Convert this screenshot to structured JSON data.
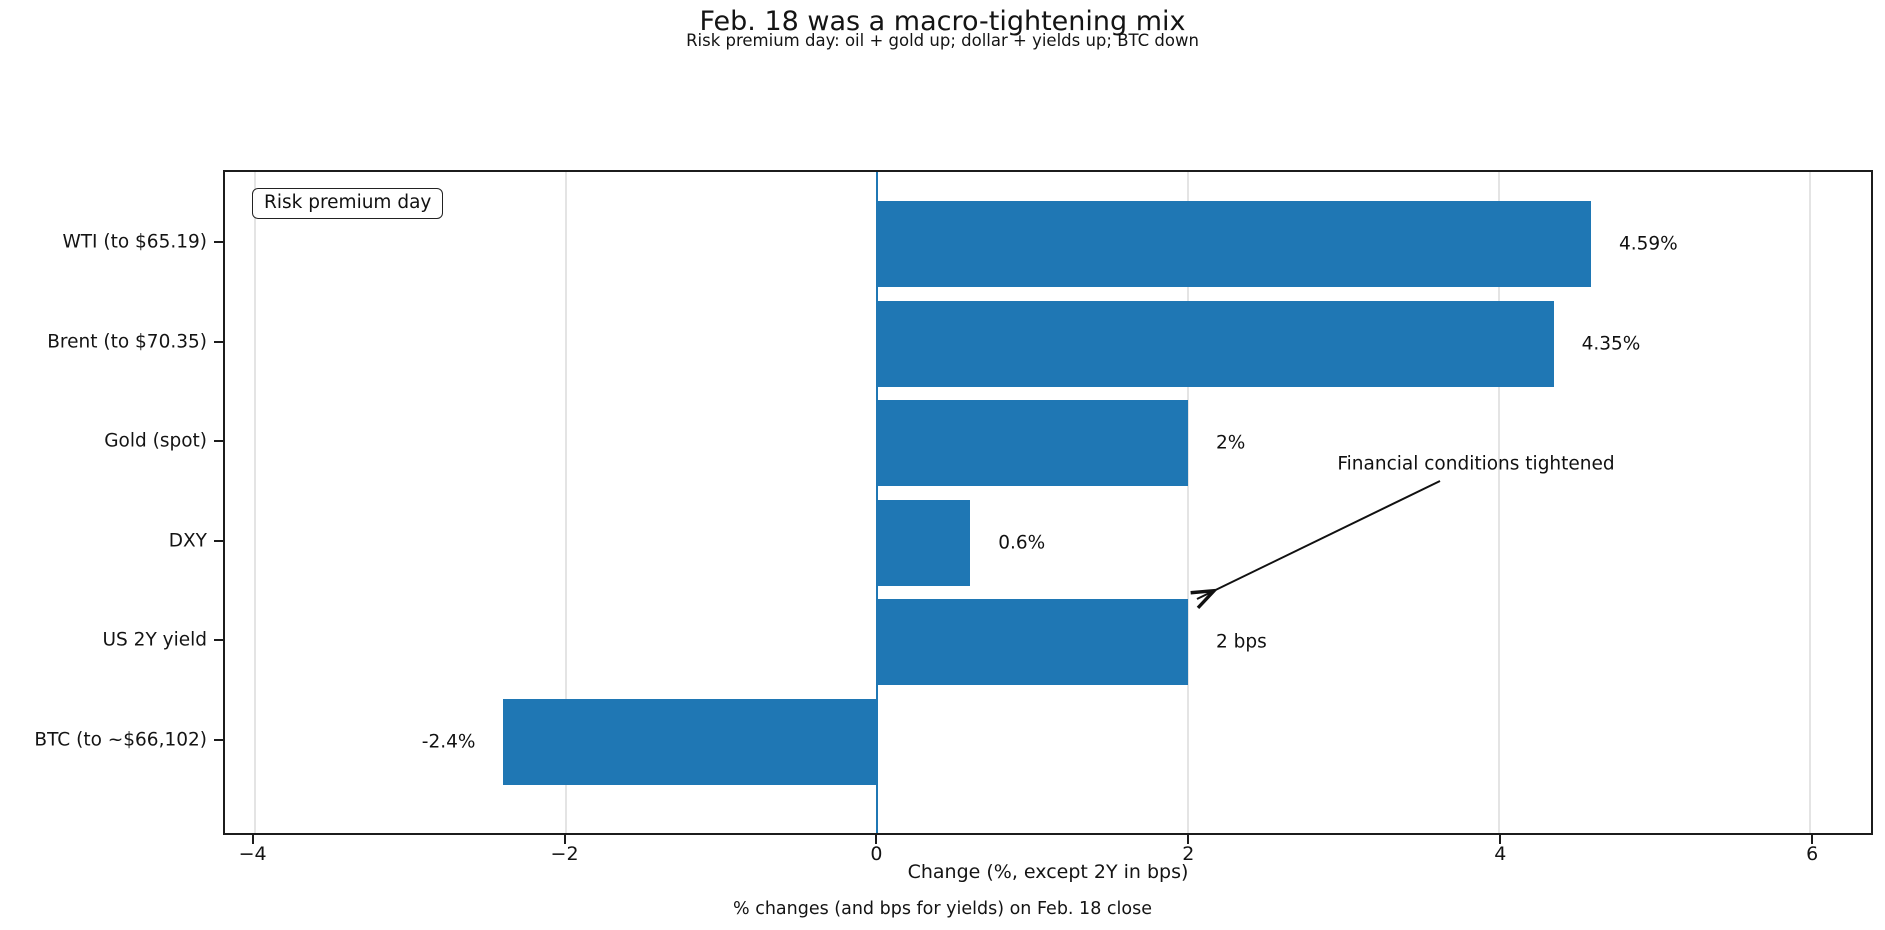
{
  "chart_data": {
    "type": "bar",
    "orientation": "horizontal",
    "title": "Feb. 18 was a macro-tightening mix",
    "subtitle": "Risk premium day: oil + gold up; dollar + yields up; BTC down",
    "categories": [
      "WTI (to $65.19)",
      "Brent (to $70.35)",
      "Gold (spot)",
      "DXY",
      "US 2Y yield",
      "BTC (to ~$66,102)"
    ],
    "values": [
      4.59,
      4.35,
      2,
      0.6,
      2,
      -2.4
    ],
    "value_labels": [
      "4.59%",
      "4.35%",
      "2%",
      "0.6%",
      "2 bps",
      "-2.4%"
    ],
    "xlabel": "Change (%, except 2Y in bps)",
    "footer": "% changes (and bps for yields) on Feb. 18 close",
    "xlim": [
      -4.19,
      6.39
    ],
    "xticks": [
      -4,
      -2,
      0,
      2,
      4,
      6
    ],
    "xtick_labels": [
      "−4",
      "−2",
      "0",
      "2",
      "4",
      "6"
    ],
    "grid": "vertical-light",
    "legend": {
      "label": "Risk premium day",
      "position": "upper-left"
    },
    "annotation": {
      "text": "Financial conditions tightened",
      "points_to": {
        "x": 2,
        "category": "US 2Y yield"
      }
    },
    "bar_color": "#1f77b4",
    "zero_line_color": "#1f77b4",
    "grid_color": "#e4e4e4",
    "text_color": "#141414"
  }
}
